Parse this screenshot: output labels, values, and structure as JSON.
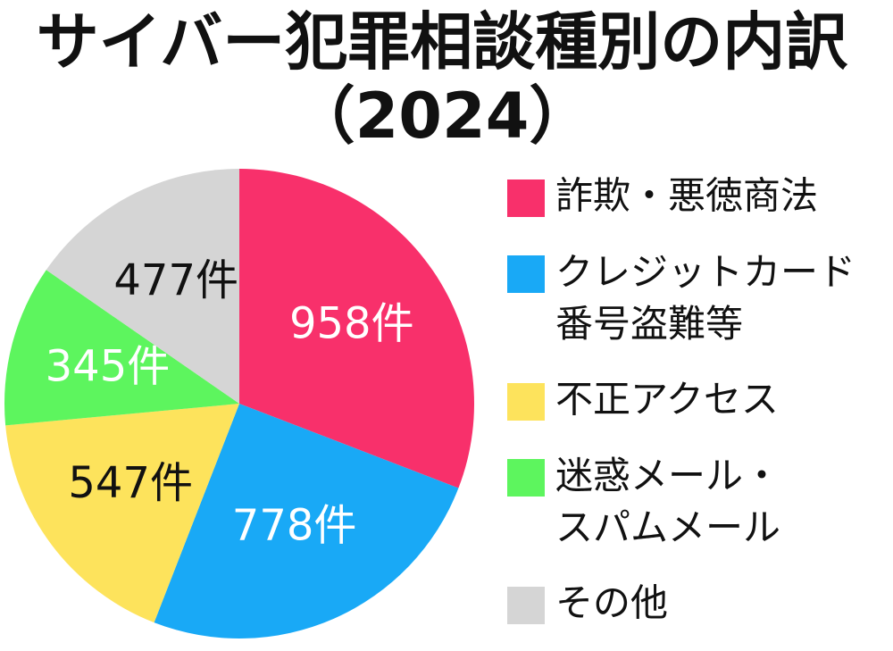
{
  "chart_data": {
    "type": "pie",
    "title": "サイバー犯罪相談種別の内訳",
    "subtitle": "（2024）",
    "categories": [
      "詐欺・悪徳商法",
      "クレジットカード\n番号盗難等",
      "不正アクセス",
      "迷惑メール・\nスパムメール",
      "その他"
    ],
    "values": [
      958,
      778,
      547,
      345,
      477
    ],
    "value_labels": [
      "958件",
      "778件",
      "547件",
      "345件",
      "477件"
    ],
    "colors": [
      "#f8306b",
      "#19a9f6",
      "#fde35c",
      "#5df55e",
      "#d5d5d5"
    ],
    "legend": "right"
  }
}
